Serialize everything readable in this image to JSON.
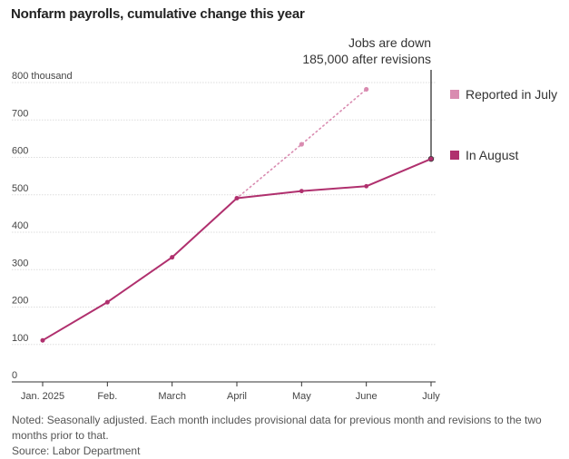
{
  "title": "Nonfarm payrolls, cumulative change this year",
  "chart_data": {
    "type": "line",
    "title": "Nonfarm payrolls, cumulative change this year",
    "categories": [
      "Jan. 2025",
      "Feb.",
      "March",
      "April",
      "May",
      "June",
      "July"
    ],
    "y_unit_label": "800 thousand",
    "y_ticks": [
      0,
      100,
      200,
      300,
      400,
      500,
      600,
      700,
      800
    ],
    "ylim": [
      0,
      800
    ],
    "grid": true,
    "series": [
      {
        "name": "Reported in July",
        "color": "#d98bb0",
        "style": "dotted",
        "values": [
          111,
          213,
          333,
          491,
          635,
          782,
          null
        ]
      },
      {
        "name": "In August",
        "color": "#b0306e",
        "style": "solid",
        "values": [
          111,
          213,
          333,
          491,
          510,
          523,
          596
        ]
      }
    ],
    "annotation": {
      "lines": [
        "Jobs are down",
        "185,000 after revisions"
      ],
      "category": "July"
    },
    "legend_position": "right"
  },
  "footer": {
    "note_line1": "Noted: Seasonally adjusted. Each month includes provisional data for previous month and revisions to the two",
    "note_line2": "months prior to that.",
    "source": "Source: Labor Department"
  }
}
